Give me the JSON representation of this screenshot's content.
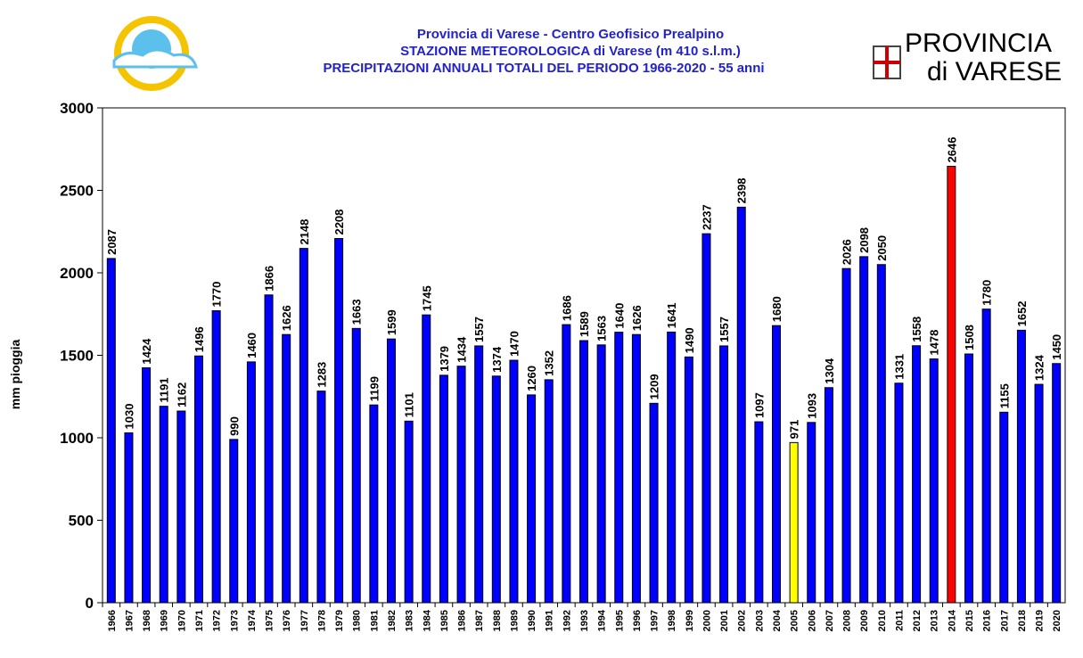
{
  "chart_data": {
    "type": "bar",
    "title": [
      "Provincia di Varese - Centro Geofisico Prealpino",
      "STAZIONE METEOROLOGICA di Varese (m 410 s.l.m.)",
      "PRECIPITAZIONI ANNUALI TOTALI  DEL PERIODO 1966-2020 - 55 anni"
    ],
    "ylabel": "mm pioggia",
    "categories": [
      "1966",
      "1967",
      "1968",
      "1969",
      "1970",
      "1971",
      "1972",
      "1973",
      "1974",
      "1975",
      "1976",
      "1977",
      "1978",
      "1979",
      "1980",
      "1981",
      "1982",
      "1983",
      "1984",
      "1985",
      "1986",
      "1987",
      "1988",
      "1989",
      "1990",
      "1991",
      "1992",
      "1993",
      "1994",
      "1995",
      "1996",
      "1997",
      "1998",
      "1999",
      "2000",
      "2001",
      "2002",
      "2003",
      "2004",
      "2005",
      "2006",
      "2007",
      "2008",
      "2009",
      "2010",
      "2011",
      "2012",
      "2013",
      "2014",
      "2015",
      "2016",
      "2017",
      "2018",
      "2019",
      "2020"
    ],
    "values": [
      2087,
      1030,
      1424,
      1191,
      1162,
      1496,
      1770,
      990,
      1460,
      1866,
      1626,
      2148,
      1283,
      2208,
      1663,
      1199,
      1599,
      1101,
      1745,
      1379,
      1434,
      1557,
      1374,
      1470,
      1260,
      1352,
      1686,
      1589,
      1563,
      1640,
      1626,
      1209,
      1641,
      1490,
      2237,
      1557,
      2398,
      1097,
      1680,
      971,
      1093,
      1304,
      2026,
      2098,
      2050,
      1331,
      1558,
      1478,
      2646,
      1508,
      1780,
      1155,
      1652,
      1324,
      1450
    ],
    "color": "#0000ff",
    "highlights": [
      {
        "index": 39,
        "color": "#ffff00"
      },
      {
        "index": 48,
        "color": "#ff0000"
      }
    ],
    "ylim": [
      0,
      3000
    ],
    "yticks": [
      0,
      500,
      1000,
      1500,
      2000,
      2500,
      3000
    ],
    "grid": false
  },
  "logo": {
    "line1": "PROVINCIA",
    "line2": "di VARESE"
  }
}
